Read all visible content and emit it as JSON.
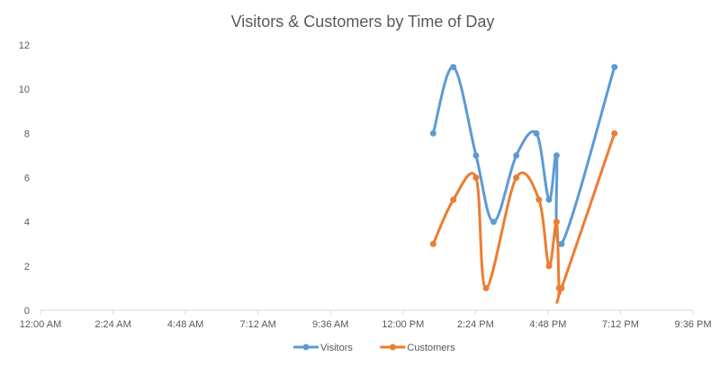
{
  "chart_data": {
    "type": "line",
    "title": "Visitors & Customers by Time of Day",
    "xlabel": "",
    "ylabel": "",
    "x_ticks": [
      "12:00 AM",
      "2:24 AM",
      "4:48 AM",
      "7:12 AM",
      "9:36 AM",
      "12:00 PM",
      "2:24 PM",
      "4:48 PM",
      "7:12 PM",
      "9:36 PM"
    ],
    "y_ticks": [
      "0",
      "2",
      "4",
      "6",
      "8",
      "10",
      "12"
    ],
    "xlim_hours": [
      0,
      21.6
    ],
    "ylim": [
      0,
      12
    ],
    "grid": false,
    "legend_position": "bottom",
    "x_time": [
      "1:00 PM",
      "1:40 PM",
      "2:25 PM",
      "3:00 PM",
      "3:45 PM",
      "4:25 PM",
      "4:50 PM",
      "5:05 PM",
      "5:15 PM",
      "7:00 PM"
    ],
    "series": [
      {
        "name": "Visitors",
        "color": "#5B9BD5",
        "values": [
          8,
          11,
          7,
          4,
          7,
          8,
          5,
          7,
          3,
          11
        ]
      },
      {
        "name": "Customers",
        "color": "#ED7D31",
        "points": [
          [
            "1:00 PM",
            3
          ],
          [
            "1:40 PM",
            5
          ],
          [
            "2:25 PM",
            6
          ],
          [
            "2:45 PM",
            1
          ],
          [
            "3:45 PM",
            6
          ],
          [
            "4:30 PM",
            5
          ],
          [
            "4:50 PM",
            2
          ],
          [
            "5:05 PM",
            4
          ],
          [
            "5:10 PM",
            1
          ],
          [
            "5:15 PM",
            1
          ],
          [
            "7:00 PM",
            8
          ]
        ]
      }
    ]
  }
}
